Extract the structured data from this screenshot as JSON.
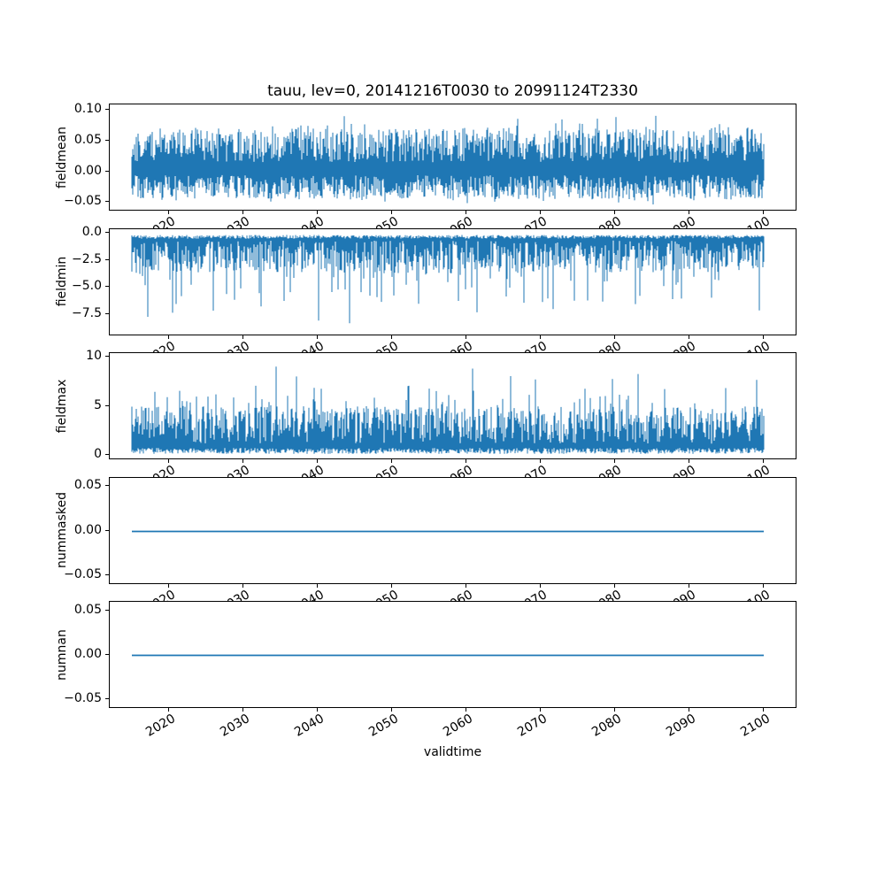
{
  "title": "tauu, lev=0, 20141216T0030 to 20991124T2330",
  "line_color": "#1f77b4",
  "x": {
    "label": "validtime",
    "lim": [
      2012,
      2104.5
    ],
    "data_range": [
      2015,
      2100
    ],
    "ticks": [
      2020,
      2030,
      2040,
      2050,
      2060,
      2070,
      2080,
      2090,
      2100
    ]
  },
  "chart_data": [
    {
      "type": "line",
      "name": "fieldmean",
      "ylabel": "fieldmean",
      "ylim": [
        -0.065,
        0.11
      ],
      "approx_value_range": [
        -0.055,
        0.1
      ],
      "yticks": [
        {
          "v": 0.1,
          "label": "0.10"
        },
        {
          "v": 0.05,
          "label": "0.05"
        },
        {
          "v": 0.0,
          "label": "0.00"
        },
        {
          "v": -0.05,
          "label": "−0.05"
        }
      ],
      "series": {
        "kind": "band",
        "seed": 101,
        "hi": {
          "base": 0.015,
          "amp": 0.055,
          "pow": 1,
          "spike_amp": 0.03,
          "spike_pow": 10
        },
        "lo": {
          "base": -0.005,
          "amp": -0.04,
          "pow": 1,
          "spike_amp": -0.012,
          "spike_pow": 8
        }
      }
    },
    {
      "type": "line",
      "name": "fieldmin",
      "ylabel": "fieldmin",
      "ylim": [
        -9.5,
        0.45
      ],
      "approx_value_range": [
        -9.0,
        0.0
      ],
      "yticks": [
        {
          "v": 0.0,
          "label": "0.0"
        },
        {
          "v": -2.5,
          "label": "−2.5"
        },
        {
          "v": -5.0,
          "label": "−5.0"
        },
        {
          "v": -7.5,
          "label": "−7.5"
        }
      ],
      "series": {
        "kind": "band",
        "seed": 202,
        "hi": {
          "base": -0.08,
          "amp": -0.35,
          "pow": 1
        },
        "lo": {
          "base": -0.6,
          "amp": -3.0,
          "pow": 1,
          "spike_amp": -5.4,
          "spike_pow": 12
        }
      }
    },
    {
      "type": "line",
      "name": "fieldmax",
      "ylabel": "fieldmax",
      "ylim": [
        -0.5,
        10.45
      ],
      "approx_value_range": [
        0,
        10
      ],
      "yticks": [
        {
          "v": 10,
          "label": "10"
        },
        {
          "v": 5,
          "label": "5"
        },
        {
          "v": 0,
          "label": "0"
        }
      ],
      "series": {
        "kind": "band",
        "seed": 303,
        "hi": {
          "base": 1.2,
          "amp": 3.8,
          "pow": 1,
          "spike_amp": 5.0,
          "spike_pow": 14
        },
        "lo": {
          "base": 0.15,
          "amp": 0.6,
          "pow": 1
        }
      }
    },
    {
      "type": "line",
      "name": "nummasked",
      "ylabel": "nummasked",
      "ylim": [
        -0.06,
        0.06
      ],
      "approx_value_range": [
        0,
        0
      ],
      "yticks": [
        {
          "v": 0.05,
          "label": "0.05"
        },
        {
          "v": 0.0,
          "label": "0.00"
        },
        {
          "v": -0.05,
          "label": "−0.05"
        }
      ],
      "series": {
        "kind": "flat",
        "value": 0
      }
    },
    {
      "type": "line",
      "name": "numnan",
      "ylabel": "numnan",
      "ylim": [
        -0.06,
        0.06
      ],
      "approx_value_range": [
        0,
        0
      ],
      "yticks": [
        {
          "v": 0.05,
          "label": "0.05"
        },
        {
          "v": 0.0,
          "label": "0.00"
        },
        {
          "v": -0.05,
          "label": "−0.05"
        }
      ],
      "series": {
        "kind": "flat",
        "value": 0
      }
    }
  ]
}
